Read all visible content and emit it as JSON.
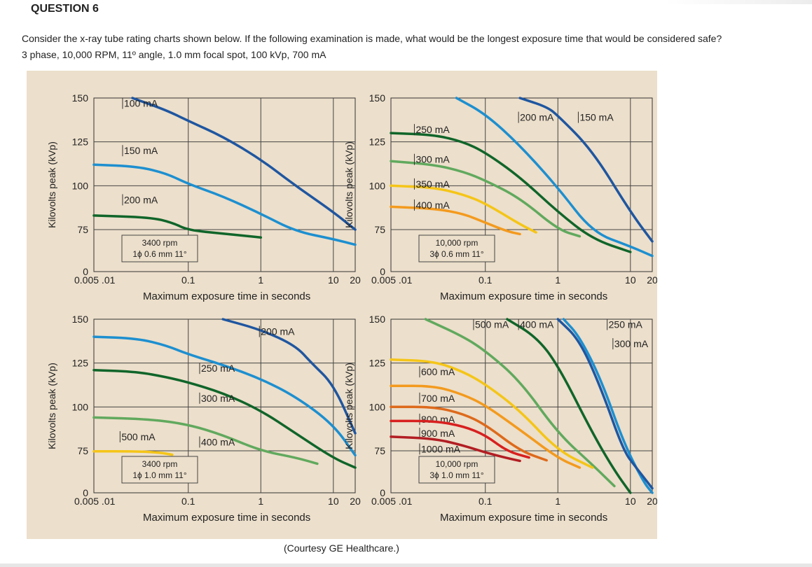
{
  "question": {
    "heading": "QUESTION 6",
    "text": "Consider the  x-ray tube rating charts shown below.  If the following examination is made, what would be the longest exposure time that would be considered safe?",
    "params": "3 phase, 10,000 RPM, 11º angle, 1.0 mm focal spot, 100 kVp, 700 mA"
  },
  "courtesy": "(Courtesy GE Healthcare.)",
  "colors": {
    "panel_bg": "#ecdfcb",
    "dark_blue": "#1f56a0",
    "light_blue": "#1d8fd0",
    "dark_green": "#10652a",
    "light_green": "#61a95e",
    "yellow": "#f5c518",
    "orange": "#f39a1e",
    "dark_orange": "#dd6a1c",
    "red": "#d7201f",
    "dark_red": "#b21e23"
  },
  "chart_data": [
    {
      "type": "line",
      "xlabel": "Maximum exposure time in seconds",
      "ylabel": "Kilovolts peak (kVp)",
      "x_scale": "log",
      "xlim": [
        0.005,
        20
      ],
      "ylim": [
        0,
        150
      ],
      "x_tick_labels": [
        "0.005 .01",
        "0.1",
        "1",
        "10",
        "20"
      ],
      "y_tick_labels": [
        "0",
        "75",
        "100",
        "125",
        "150"
      ],
      "grid": true,
      "spec_box": [
        "3400 rpm",
        "1ϕ 0.6 mm 11°"
      ],
      "series": [
        {
          "name": "100 mA",
          "color": "dark_blue",
          "label_at": [
            0.013,
            145
          ],
          "points": [
            [
              0.017,
              150
            ],
            [
              0.05,
              143
            ],
            [
              0.1,
              137
            ],
            [
              0.3,
              128
            ],
            [
              1,
              115
            ],
            [
              3,
              100
            ],
            [
              10,
              85
            ],
            [
              20,
              75
            ]
          ]
        },
        {
          "name": "150 mA",
          "color": "light_blue",
          "label_at": [
            0.013,
            118
          ],
          "points": [
            [
              0.005,
              112
            ],
            [
              0.02,
              111
            ],
            [
              0.05,
              107
            ],
            [
              0.1,
              101
            ],
            [
              0.3,
              94
            ],
            [
              1,
              84
            ],
            [
              3,
              72
            ],
            [
              10,
              58
            ],
            [
              20,
              48
            ]
          ]
        },
        {
          "name": "200 mA",
          "color": "dark_green",
          "label_at": [
            0.013,
            90
          ],
          "points": [
            [
              0.005,
              83
            ],
            [
              0.03,
              82
            ],
            [
              0.06,
              79
            ],
            [
              0.1,
              74
            ],
            [
              0.3,
              68
            ],
            [
              0.7,
              63
            ],
            [
              1,
              61
            ]
          ]
        }
      ]
    },
    {
      "type": "line",
      "xlabel": "Maximum exposure time in seconds",
      "ylabel": "Kilovolts peak (kVp)",
      "x_scale": "log",
      "xlim": [
        0.005,
        20
      ],
      "ylim": [
        0,
        150
      ],
      "x_tick_labels": [
        "0.005 .01",
        "0.1",
        "1",
        "10",
        "20"
      ],
      "y_tick_labels": [
        "0",
        "75",
        "100",
        "125",
        "150"
      ],
      "grid": true,
      "spec_box": [
        "10,000 rpm",
        "3ϕ 0.6 mm 11°"
      ],
      "series": [
        {
          "name": "200 mA",
          "color": "light_blue",
          "label_at": [
            0.3,
            137
          ],
          "points": [
            [
              0.04,
              150
            ],
            [
              0.1,
              141
            ],
            [
              0.3,
              123
            ],
            [
              1,
              99
            ],
            [
              3,
              70
            ],
            [
              10,
              45
            ],
            [
              20,
              28
            ]
          ]
        },
        {
          "name": "150 mA",
          "color": "dark_blue",
          "label_at": [
            2.0,
            137
          ],
          "points": [
            [
              0.3,
              150
            ],
            [
              0.7,
              145
            ],
            [
              1,
              140
            ],
            [
              3,
              120
            ],
            [
              10,
              85
            ],
            [
              20,
              54
            ]
          ]
        },
        {
          "name": "250 mA",
          "color": "dark_green",
          "label_at": [
            0.011,
            130
          ],
          "points": [
            [
              0.005,
              130
            ],
            [
              0.02,
              129
            ],
            [
              0.05,
              125
            ],
            [
              0.1,
              119
            ],
            [
              0.3,
              105
            ],
            [
              1,
              85
            ],
            [
              3,
              58
            ],
            [
              10,
              35
            ]
          ]
        },
        {
          "name": "300 mA",
          "color": "light_green",
          "label_at": [
            0.011,
            113
          ],
          "points": [
            [
              0.005,
              114
            ],
            [
              0.02,
              112
            ],
            [
              0.05,
              108
            ],
            [
              0.1,
              103
            ],
            [
              0.3,
              93
            ],
            [
              1,
              75
            ],
            [
              2,
              63
            ]
          ]
        },
        {
          "name": "350 mA",
          "color": "yellow",
          "label_at": [
            0.011,
            99
          ],
          "points": [
            [
              0.005,
              100
            ],
            [
              0.02,
              99
            ],
            [
              0.05,
              95
            ],
            [
              0.1,
              90
            ],
            [
              0.3,
              78
            ],
            [
              0.5,
              70
            ]
          ]
        },
        {
          "name": "400 mA",
          "color": "orange",
          "label_at": [
            0.011,
            87
          ],
          "points": [
            [
              0.005,
              88
            ],
            [
              0.02,
              87
            ],
            [
              0.05,
              84
            ],
            [
              0.1,
              79
            ],
            [
              0.2,
              72
            ],
            [
              0.3,
              67
            ]
          ]
        }
      ]
    },
    {
      "type": "line",
      "xlabel": "Maximum exposure time in seconds",
      "ylabel": "Kilovolts peak (kVp)",
      "x_scale": "log",
      "xlim": [
        0.005,
        20
      ],
      "ylim": [
        0,
        150
      ],
      "x_tick_labels": [
        "0.005 .01",
        "0.1",
        "1",
        "10",
        "20"
      ],
      "y_tick_labels": [
        "0",
        "75",
        "100",
        "125",
        "150"
      ],
      "grid": true,
      "spec_box": [
        "3400 rpm",
        "1ϕ 1.0 mm 11°"
      ],
      "series": [
        {
          "name": "200 mA",
          "color": "dark_blue",
          "label_at": [
            1.0,
            141
          ],
          "points": [
            [
              0.3,
              150
            ],
            [
              1,
              144
            ],
            [
              3,
              135
            ],
            [
              5,
              125
            ],
            [
              10,
              113
            ],
            [
              20,
              85
            ]
          ]
        },
        {
          "name": "250 mA",
          "color": "light_blue",
          "label_at": [
            0.15,
            120
          ],
          "points": [
            [
              0.005,
              140
            ],
            [
              0.02,
              139
            ],
            [
              0.05,
              135
            ],
            [
              0.1,
              130
            ],
            [
              0.3,
              124
            ],
            [
              1,
              116
            ],
            [
              3,
              106
            ],
            [
              10,
              90
            ],
            [
              20,
              67
            ]
          ]
        },
        {
          "name": "300 mA",
          "color": "dark_green",
          "label_at": [
            0.15,
            103
          ],
          "points": [
            [
              0.005,
              121
            ],
            [
              0.02,
              120
            ],
            [
              0.05,
              117
            ],
            [
              0.1,
              114
            ],
            [
              0.3,
              108
            ],
            [
              1,
              98
            ],
            [
              3,
              85
            ],
            [
              10,
              62
            ],
            [
              20,
              45
            ]
          ]
        },
        {
          "name": "400 mA",
          "color": "light_green",
          "label_at": [
            0.15,
            78
          ],
          "points": [
            [
              0.005,
              94
            ],
            [
              0.03,
              93
            ],
            [
              0.1,
              90
            ],
            [
              0.3,
              84
            ],
            [
              1,
              75
            ],
            [
              3,
              63
            ],
            [
              6,
              52
            ]
          ]
        },
        {
          "name": "500 mA",
          "color": "yellow",
          "label_at": [
            0.012,
            81
          ],
          "points": [
            [
              0.005,
              74
            ],
            [
              0.02,
              74
            ],
            [
              0.04,
              72
            ],
            [
              0.06,
              68
            ]
          ]
        }
      ]
    },
    {
      "type": "line",
      "xlabel": "Maximum exposure time in seconds",
      "ylabel": "Kilovolts peak (kVp)",
      "x_scale": "log",
      "xlim": [
        0.005,
        20
      ],
      "ylim": [
        0,
        150
      ],
      "x_tick_labels": [
        "0.005 .01",
        "0.1",
        "1",
        "10",
        "20"
      ],
      "y_tick_labels": [
        "0",
        "75",
        "100",
        "125",
        "150"
      ],
      "grid": true,
      "spec_box": [
        "10,000 rpm",
        "3ϕ 1.0 mm 11°"
      ],
      "series": [
        {
          "name": "500 mA",
          "color": "light_green",
          "label_at": [
            0.072,
            145
          ],
          "points": [
            [
              0.015,
              150
            ],
            [
              0.05,
              140
            ],
            [
              0.1,
              132
            ],
            [
              0.3,
              115
            ],
            [
              1,
              85
            ],
            [
              3,
              50
            ],
            [
              6,
              12
            ]
          ]
        },
        {
          "name": "400 mA",
          "color": "dark_green",
          "label_at": [
            0.3,
            145
          ],
          "points": [
            [
              0.2,
              150
            ],
            [
              0.5,
              140
            ],
            [
              1,
              124
            ],
            [
              3,
              85
            ],
            [
              6,
              40
            ],
            [
              10,
              0
            ]
          ]
        },
        {
          "name": "250 mA",
          "color": "light_blue",
          "label_at": [
            5.0,
            145
          ],
          "points": [
            [
              1.2,
              150
            ],
            [
              2,
              140
            ],
            [
              4,
              115
            ],
            [
              8,
              80
            ],
            [
              15,
              20
            ],
            [
              20,
              0
            ]
          ]
        },
        {
          "name": "300 mA",
          "color": "dark_blue",
          "label_at": [
            6.0,
            134
          ],
          "points": [
            [
              1.0,
              150
            ],
            [
              2,
              138
            ],
            [
              4,
              110
            ],
            [
              8,
              75
            ],
            [
              12,
              45
            ],
            [
              20,
              8
            ]
          ]
        },
        {
          "name": "600 mA",
          "color": "yellow",
          "label_at": [
            0.013,
            118
          ],
          "points": [
            [
              0.005,
              127
            ],
            [
              0.02,
              126
            ],
            [
              0.05,
              120
            ],
            [
              0.1,
              113
            ],
            [
              0.3,
              98
            ],
            [
              1,
              75
            ],
            [
              3,
              45
            ]
          ]
        },
        {
          "name": "700 mA",
          "color": "orange",
          "label_at": [
            0.013,
            103
          ],
          "points": [
            [
              0.005,
              112
            ],
            [
              0.02,
              112
            ],
            [
              0.05,
              107
            ],
            [
              0.1,
              101
            ],
            [
              0.3,
              87
            ],
            [
              1,
              62
            ],
            [
              2,
              45
            ]
          ]
        },
        {
          "name": "800 mA",
          "color": "dark_orange",
          "label_at": [
            0.013,
            91
          ],
          "points": [
            [
              0.005,
              100
            ],
            [
              0.02,
              100
            ],
            [
              0.05,
              96
            ],
            [
              0.1,
              90
            ],
            [
              0.3,
              75
            ],
            [
              0.7,
              58
            ]
          ]
        },
        {
          "name": "900 mA",
          "color": "red",
          "label_at": [
            0.013,
            83
          ],
          "points": [
            [
              0.005,
              92
            ],
            [
              0.02,
              92
            ],
            [
              0.05,
              89
            ],
            [
              0.1,
              84
            ],
            [
              0.2,
              74
            ],
            [
              0.4,
              63
            ]
          ]
        },
        {
          "name": "1000 mA",
          "color": "dark_red",
          "label_at": [
            0.013,
            72
          ],
          "points": [
            [
              0.005,
              83
            ],
            [
              0.02,
              82
            ],
            [
              0.05,
              78
            ],
            [
              0.1,
              72
            ],
            [
              0.2,
              62
            ],
            [
              0.3,
              57
            ]
          ]
        }
      ]
    }
  ]
}
